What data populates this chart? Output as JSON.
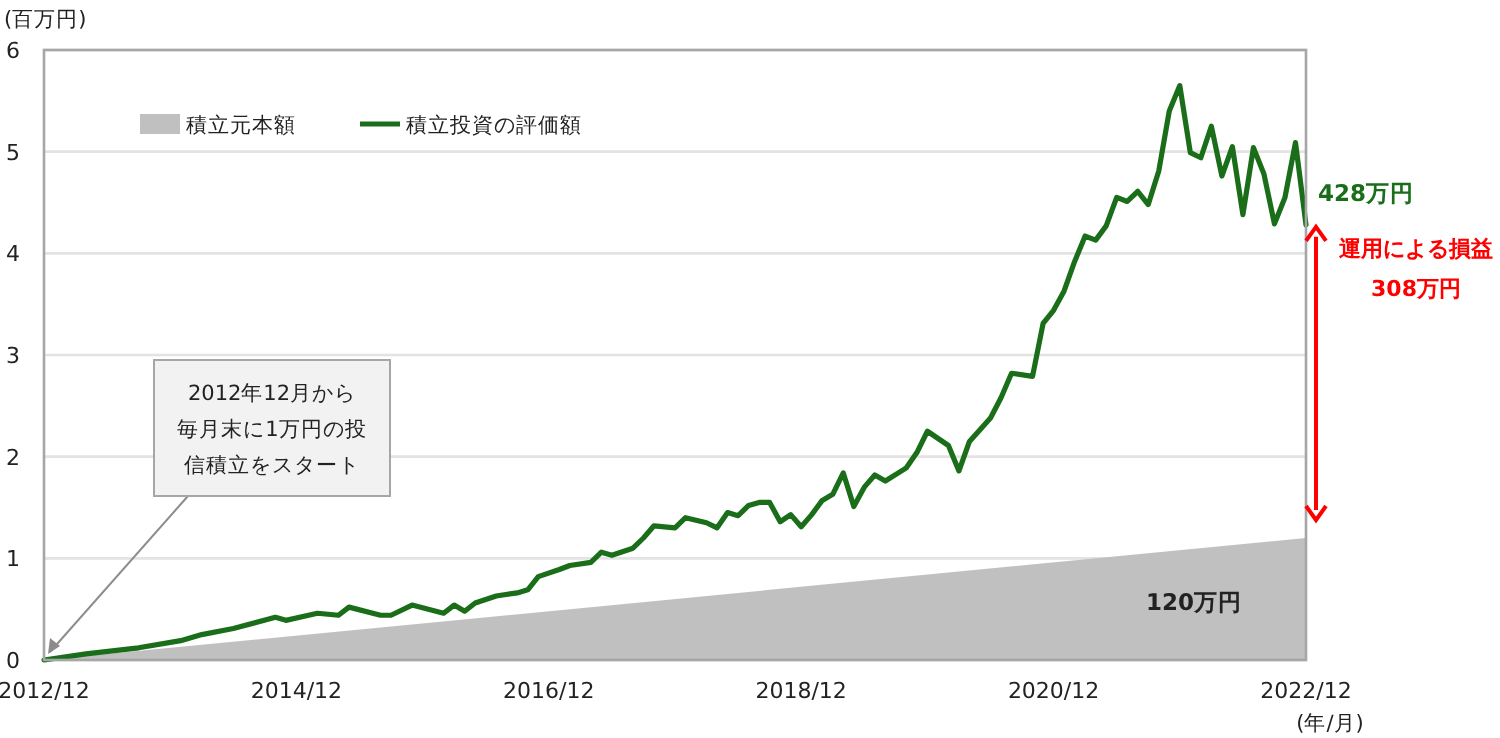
{
  "chart_data": {
    "type": "line",
    "ylabel": "(百万円)",
    "xlabel": "(年/月)",
    "xlim": [
      "2012-12",
      "2022-12"
    ],
    "ylim": [
      0,
      6
    ],
    "yticks": [
      0,
      1,
      2,
      3,
      4,
      5,
      6
    ],
    "xticks": [
      {
        "value": "2012-12",
        "label": "2012/12"
      },
      {
        "value": "2014-12",
        "label": "2014/12"
      },
      {
        "value": "2016-12",
        "label": "2016/12"
      },
      {
        "value": "2018-12",
        "label": "2018/12"
      },
      {
        "value": "2020-12",
        "label": "2020/12"
      },
      {
        "value": "2022-12",
        "label": "2022/12"
      }
    ],
    "grid": "y",
    "legend": "top left",
    "series": [
      {
        "name": "積立元本額",
        "type": "area",
        "color": "#c0c0c0",
        "x": [
          "2012-12",
          "2022-12"
        ],
        "values": [
          0,
          1.2
        ]
      },
      {
        "name": "積立投資の評価額",
        "color": "#1a6e1a",
        "x": [
          "2012-12",
          "2013-04",
          "2013-09",
          "2014-01",
          "2014-03",
          "2014-06",
          "2014-10",
          "2014-11",
          "2015-02",
          "2015-04",
          "2015-05",
          "2015-08",
          "2015-09",
          "2015-11",
          "2016-02",
          "2016-03",
          "2016-04",
          "2016-05",
          "2016-07",
          "2016-09",
          "2016-10",
          "2016-11",
          "2017-01",
          "2017-02",
          "2017-04",
          "2017-05",
          "2017-06",
          "2017-08",
          "2017-09",
          "2017-10",
          "2017-12",
          "2018-01",
          "2018-03",
          "2018-04",
          "2018-05",
          "2018-06",
          "2018-07",
          "2018-08",
          "2018-09",
          "2018-10",
          "2018-11",
          "2018-12",
          "2019-01",
          "2019-02",
          "2019-03",
          "2019-04",
          "2019-05",
          "2019-06",
          "2019-07",
          "2019-08",
          "2019-10",
          "2019-11",
          "2019-12",
          "2020-02",
          "2020-03",
          "2020-04",
          "2020-06",
          "2020-07",
          "2020-08",
          "2020-10",
          "2020-11",
          "2020-12",
          "2021-01",
          "2021-02",
          "2021-03",
          "2021-04",
          "2021-05",
          "2021-06",
          "2021-07",
          "2021-08",
          "2021-09",
          "2021-10",
          "2021-11",
          "2021-12",
          "2022-01",
          "2022-02",
          "2022-03",
          "2022-04",
          "2022-05",
          "2022-06",
          "2022-07",
          "2022-08",
          "2022-09",
          "2022-10",
          "2022-11",
          "2022-12"
        ],
        "values": [
          0,
          0.06,
          0.12,
          0.19,
          0.25,
          0.31,
          0.42,
          0.39,
          0.46,
          0.44,
          0.52,
          0.44,
          0.44,
          0.54,
          0.46,
          0.54,
          0.48,
          0.56,
          0.63,
          0.66,
          0.69,
          0.82,
          0.89,
          0.93,
          0.96,
          1.06,
          1.03,
          1.1,
          1.2,
          1.32,
          1.3,
          1.4,
          1.35,
          1.3,
          1.45,
          1.42,
          1.52,
          1.55,
          1.55,
          1.36,
          1.43,
          1.31,
          1.43,
          1.57,
          1.63,
          1.84,
          1.51,
          1.7,
          1.82,
          1.76,
          1.89,
          2.04,
          2.25,
          2.11,
          1.86,
          2.15,
          2.38,
          2.58,
          2.82,
          2.79,
          3.31,
          3.44,
          3.63,
          3.92,
          4.17,
          4.13,
          4.27,
          4.55,
          4.51,
          4.61,
          4.48,
          4.81,
          5.4,
          5.65,
          4.99,
          4.94,
          5.25,
          4.76,
          5.05,
          4.38,
          5.04,
          4.78,
          4.29,
          4.55,
          5.09,
          4.28
        ]
      }
    ],
    "annotations": [
      {
        "text": "2012年12月から毎月末に1万円の投信積立をスタート",
        "x": "2012-12",
        "y": 0
      },
      {
        "text": "428万円",
        "x": "2022-12",
        "y": 4.28
      },
      "120万円",
      "運用による損益",
      "308万円"
    ]
  }
}
